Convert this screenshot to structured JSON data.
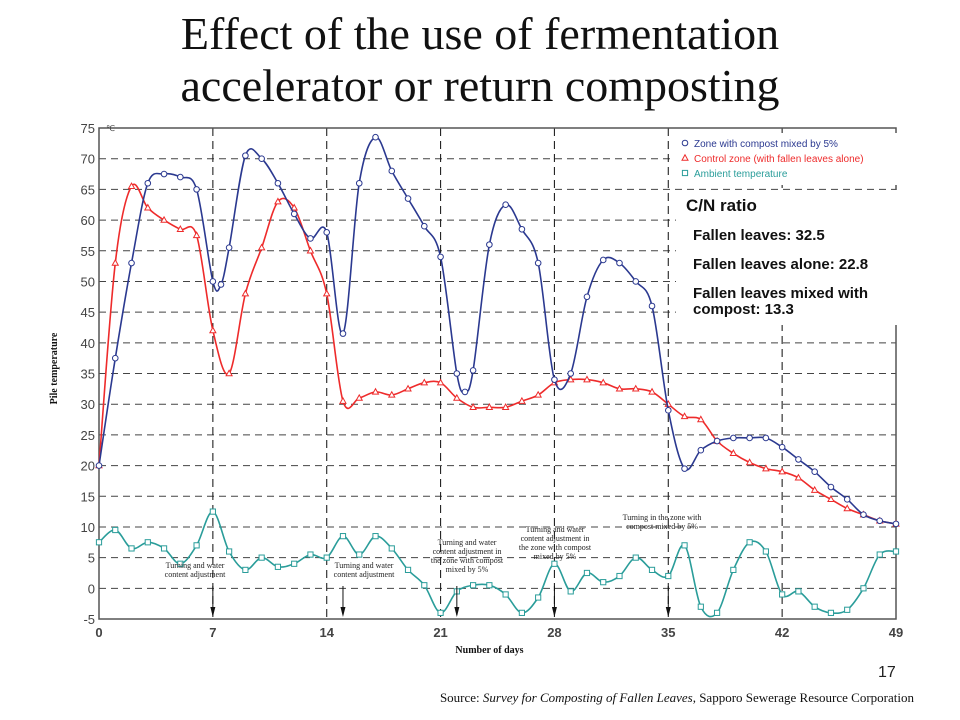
{
  "slide": {
    "title_line1": "Effect of the use of fermentation",
    "title_line2": "accelerator or return composting",
    "page_number": "17",
    "source_prefix": "Source: ",
    "source_title": "Survey for Composting of Fallen Leaves",
    "source_suffix": ", Sapporo Sewerage Resource Corporation"
  },
  "cn_ratio": {
    "title": "C/N ratio",
    "items": [
      "Fallen leaves: 32.5",
      "Fallen leaves alone: 22.8",
      "Fallen leaves mixed with compost: 13.3"
    ]
  },
  "chart_data": {
    "type": "line",
    "xlabel": "Number of days",
    "ylabel": "Pile temperature",
    "yunit": "℃",
    "xlim": [
      0,
      49
    ],
    "ylim": [
      -5,
      75
    ],
    "xticks": [
      0,
      7,
      14,
      21,
      28,
      35,
      42,
      49
    ],
    "yticks": [
      -5,
      0,
      5,
      10,
      15,
      20,
      25,
      30,
      35,
      40,
      45,
      50,
      55,
      60,
      65,
      70,
      75
    ],
    "grid": true,
    "legend_position": "top-right",
    "colors": {
      "compost": "#2b3990",
      "control": "#ee2b2b",
      "ambient": "#2a9d9a",
      "frame": "#555555"
    },
    "series": [
      {
        "name": "Zone with compost mixed by 5%",
        "marker": "circle",
        "x": [
          0,
          1,
          2,
          3,
          4,
          5,
          6,
          7,
          7.5,
          8,
          9,
          10,
          11,
          12,
          13,
          14,
          15,
          16,
          17,
          18,
          19,
          20,
          21,
          22,
          22.5,
          23,
          24,
          25,
          26,
          27,
          28,
          29,
          30,
          31,
          32,
          33,
          34,
          35,
          36,
          37,
          38,
          39,
          40,
          41,
          42,
          43,
          44,
          45,
          46,
          47,
          48,
          49
        ],
        "y": [
          20,
          37.5,
          53,
          66,
          67.5,
          67,
          65,
          50,
          49.5,
          55.5,
          70.5,
          70,
          66,
          61,
          57,
          58,
          41.5,
          66,
          73.5,
          68,
          63.5,
          59,
          54,
          35,
          32,
          35.5,
          56,
          62.5,
          58.5,
          53,
          34,
          35,
          47.5,
          53.5,
          53,
          50,
          46,
          29,
          19.5,
          22.5,
          24,
          24.5,
          24.5,
          24.5,
          23,
          21,
          19,
          16.5,
          14.5,
          12,
          11,
          10.5
        ]
      },
      {
        "name": "Control zone (with fallen leaves alone)",
        "marker": "triangle",
        "x": [
          0,
          1,
          2,
          3,
          4,
          5,
          6,
          7,
          8,
          9,
          10,
          11,
          12,
          13,
          14,
          15,
          16,
          17,
          18,
          19,
          20,
          21,
          22,
          23,
          24,
          25,
          26,
          27,
          28,
          29,
          30,
          31,
          32,
          33,
          34,
          35,
          36,
          37,
          38,
          39,
          40,
          41,
          42,
          43,
          44,
          45,
          46,
          47,
          48,
          49
        ],
        "y": [
          20,
          53,
          65.5,
          62,
          60,
          58.5,
          57.5,
          42,
          35,
          48,
          55.5,
          63,
          62,
          55,
          48,
          30.5,
          31,
          32,
          31.5,
          32.5,
          33.5,
          33.5,
          31,
          29.5,
          29.5,
          29.5,
          30.5,
          31.5,
          33.5,
          34,
          34,
          33.5,
          32.5,
          32.5,
          32,
          30,
          28,
          27.5,
          24,
          22,
          20.5,
          19.5,
          19,
          18,
          16,
          14.5,
          13,
          12,
          11,
          10.5
        ]
      },
      {
        "name": "Ambient temperature",
        "marker": "square",
        "x": [
          0,
          1,
          2,
          3,
          4,
          5,
          6,
          7,
          8,
          9,
          10,
          11,
          12,
          13,
          14,
          15,
          16,
          17,
          18,
          19,
          20,
          21,
          22,
          23,
          24,
          25,
          26,
          27,
          28,
          29,
          30,
          31,
          32,
          33,
          34,
          35,
          36,
          37,
          38,
          39,
          40,
          41,
          42,
          43,
          44,
          45,
          46,
          47,
          48,
          49
        ],
        "y": [
          7.5,
          9.5,
          6.5,
          7.5,
          6.5,
          4,
          7,
          12.5,
          6,
          3,
          5,
          3.5,
          4,
          5.5,
          5,
          8.5,
          5.5,
          8.5,
          6.5,
          3,
          0.5,
          -4,
          -0.5,
          0.5,
          0.5,
          -1,
          -4,
          -1.5,
          4,
          -0.5,
          2.5,
          1,
          2,
          5,
          3,
          2,
          7,
          -3,
          -4,
          3,
          7.5,
          6,
          -1,
          -0.5,
          -3,
          -4,
          -3.5,
          0,
          5.5,
          6
        ]
      }
    ],
    "annotations": [
      {
        "day": 7,
        "text": [
          "Turning and water",
          "content adjustment"
        ]
      },
      {
        "day": 14,
        "text": [
          "Turning and water",
          "content adjustment"
        ]
      },
      {
        "day": 21,
        "text": [
          "Turning and water",
          "content adjustment in",
          "the zone with compost",
          "mixed by 5%"
        ]
      },
      {
        "day": 28,
        "text": [
          "Turning and water",
          "content adjustment in",
          "the zone with compost",
          "mixed by 5%"
        ]
      },
      {
        "day": 35,
        "text": [
          "Turning in the zone with",
          "compost mixed by 5%"
        ]
      }
    ]
  }
}
